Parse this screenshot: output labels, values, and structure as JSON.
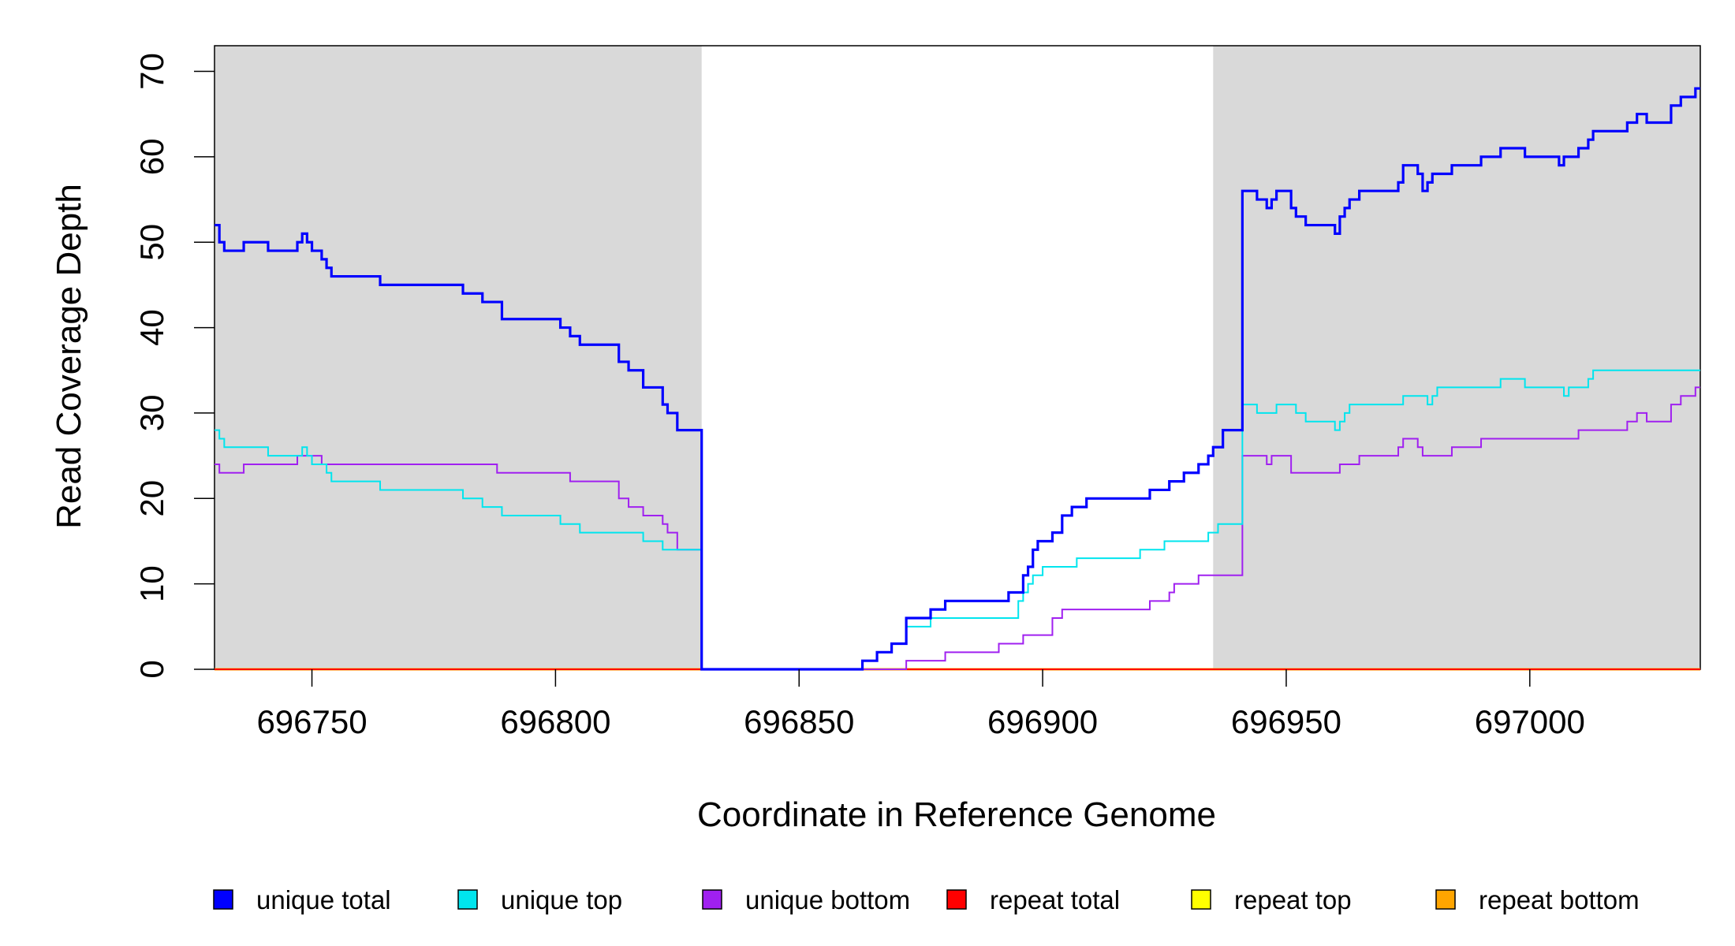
{
  "chart_data": {
    "type": "line",
    "xlabel": "Coordinate in Reference Genome",
    "ylabel": "Read Coverage Depth",
    "xlim": [
      696730,
      697035
    ],
    "ylim": [
      0,
      73
    ],
    "x_ticks": [
      696750,
      696800,
      696850,
      696900,
      696950,
      697000
    ],
    "y_ticks": [
      0,
      10,
      20,
      30,
      40,
      50,
      60,
      70
    ],
    "shaded_regions": [
      {
        "from": 696730,
        "to": 696830,
        "color": "#d9d9d9"
      },
      {
        "from": 696935,
        "to": 697035,
        "color": "#d9d9d9"
      }
    ],
    "legend_position": "bottom",
    "series": [
      {
        "name": "unique total",
        "color": "#0000ff",
        "points": [
          [
            696730,
            52
          ],
          [
            696731,
            50
          ],
          [
            696732,
            49
          ],
          [
            696736,
            50
          ],
          [
            696741,
            49
          ],
          [
            696747,
            50
          ],
          [
            696748,
            51
          ],
          [
            696749,
            50
          ],
          [
            696750,
            49
          ],
          [
            696752,
            48
          ],
          [
            696753,
            47
          ],
          [
            696754,
            46
          ],
          [
            696764,
            45
          ],
          [
            696781,
            44
          ],
          [
            696785,
            43
          ],
          [
            696789,
            41
          ],
          [
            696801,
            40
          ],
          [
            696803,
            39
          ],
          [
            696805,
            38
          ],
          [
            696813,
            36
          ],
          [
            696815,
            35
          ],
          [
            696818,
            33
          ],
          [
            696822,
            31
          ],
          [
            696823,
            30
          ],
          [
            696825,
            28
          ],
          [
            696830,
            28
          ],
          [
            696830,
            0
          ],
          [
            696863,
            0
          ],
          [
            696863,
            1
          ],
          [
            696866,
            2
          ],
          [
            696869,
            3
          ],
          [
            696872,
            6
          ],
          [
            696877,
            7
          ],
          [
            696880,
            8
          ],
          [
            696891,
            8
          ],
          [
            696893,
            9
          ],
          [
            696896,
            11
          ],
          [
            696897,
            12
          ],
          [
            696898,
            14
          ],
          [
            696899,
            15
          ],
          [
            696902,
            16
          ],
          [
            696904,
            18
          ],
          [
            696906,
            19
          ],
          [
            696909,
            20
          ],
          [
            696922,
            21
          ],
          [
            696926,
            22
          ],
          [
            696929,
            23
          ],
          [
            696932,
            24
          ],
          [
            696934,
            25
          ],
          [
            696935,
            26
          ],
          [
            696937,
            28
          ],
          [
            696940,
            28
          ],
          [
            696941,
            56
          ],
          [
            696944,
            55
          ],
          [
            696946,
            54
          ],
          [
            696947,
            55
          ],
          [
            696948,
            56
          ],
          [
            696951,
            54
          ],
          [
            696952,
            53
          ],
          [
            696954,
            52
          ],
          [
            696960,
            51
          ],
          [
            696961,
            53
          ],
          [
            696962,
            54
          ],
          [
            696963,
            55
          ],
          [
            696965,
            56
          ],
          [
            696973,
            57
          ],
          [
            696974,
            59
          ],
          [
            696977,
            58
          ],
          [
            696978,
            56
          ],
          [
            696979,
            57
          ],
          [
            696980,
            58
          ],
          [
            696984,
            59
          ],
          [
            696990,
            60
          ],
          [
            696994,
            61
          ],
          [
            696999,
            60
          ],
          [
            697006,
            59
          ],
          [
            697007,
            60
          ],
          [
            697010,
            61
          ],
          [
            697012,
            62
          ],
          [
            697013,
            63
          ],
          [
            697020,
            64
          ],
          [
            697022,
            65
          ],
          [
            697024,
            64
          ],
          [
            697029,
            66
          ],
          [
            697031,
            67
          ],
          [
            697034,
            68
          ],
          [
            697035,
            68
          ]
        ]
      },
      {
        "name": "unique top",
        "color": "#00e5ee",
        "points": [
          [
            696730,
            28
          ],
          [
            696731,
            27
          ],
          [
            696732,
            26
          ],
          [
            696741,
            25
          ],
          [
            696748,
            26
          ],
          [
            696749,
            25
          ],
          [
            696750,
            24
          ],
          [
            696753,
            23
          ],
          [
            696754,
            22
          ],
          [
            696764,
            21
          ],
          [
            696781,
            20
          ],
          [
            696785,
            19
          ],
          [
            696789,
            18
          ],
          [
            696801,
            17
          ],
          [
            696805,
            16
          ],
          [
            696818,
            15
          ],
          [
            696822,
            14
          ],
          [
            696825,
            14
          ],
          [
            696830,
            14
          ],
          [
            696830,
            0
          ],
          [
            696863,
            0
          ],
          [
            696863,
            1
          ],
          [
            696866,
            2
          ],
          [
            696869,
            3
          ],
          [
            696872,
            5
          ],
          [
            696877,
            6
          ],
          [
            696895,
            8
          ],
          [
            696896,
            9
          ],
          [
            696897,
            10
          ],
          [
            696898,
            11
          ],
          [
            696900,
            12
          ],
          [
            696907,
            13
          ],
          [
            696920,
            14
          ],
          [
            696925,
            15
          ],
          [
            696934,
            16
          ],
          [
            696936,
            17
          ],
          [
            696940,
            17
          ],
          [
            696941,
            31
          ],
          [
            696944,
            30
          ],
          [
            696948,
            31
          ],
          [
            696952,
            30
          ],
          [
            696954,
            29
          ],
          [
            696960,
            28
          ],
          [
            696961,
            29
          ],
          [
            696962,
            30
          ],
          [
            696963,
            31
          ],
          [
            696974,
            32
          ],
          [
            696979,
            31
          ],
          [
            696980,
            32
          ],
          [
            696981,
            33
          ],
          [
            696994,
            34
          ],
          [
            696999,
            33
          ],
          [
            697007,
            32
          ],
          [
            697008,
            33
          ],
          [
            697012,
            34
          ],
          [
            697013,
            35
          ],
          [
            697035,
            35
          ]
        ]
      },
      {
        "name": "unique bottom",
        "color": "#a020f0",
        "points": [
          [
            696730,
            24
          ],
          [
            696731,
            23
          ],
          [
            696736,
            24
          ],
          [
            696747,
            25
          ],
          [
            696752,
            24
          ],
          [
            696788,
            23
          ],
          [
            696803,
            22
          ],
          [
            696813,
            20
          ],
          [
            696815,
            19
          ],
          [
            696818,
            18
          ],
          [
            696822,
            17
          ],
          [
            696823,
            16
          ],
          [
            696825,
            14
          ],
          [
            696830,
            14
          ],
          [
            696830,
            0
          ],
          [
            696872,
            0
          ],
          [
            696872,
            1
          ],
          [
            696880,
            2
          ],
          [
            696891,
            3
          ],
          [
            696896,
            4
          ],
          [
            696902,
            6
          ],
          [
            696904,
            7
          ],
          [
            696922,
            8
          ],
          [
            696926,
            9
          ],
          [
            696927,
            10
          ],
          [
            696932,
            11
          ],
          [
            696940,
            11
          ],
          [
            696941,
            25
          ],
          [
            696946,
            24
          ],
          [
            696947,
            25
          ],
          [
            696951,
            23
          ],
          [
            696961,
            24
          ],
          [
            696965,
            25
          ],
          [
            696973,
            26
          ],
          [
            696974,
            27
          ],
          [
            696977,
            26
          ],
          [
            696978,
            25
          ],
          [
            696984,
            26
          ],
          [
            696990,
            27
          ],
          [
            697010,
            28
          ],
          [
            697020,
            29
          ],
          [
            697022,
            30
          ],
          [
            697024,
            29
          ],
          [
            697029,
            31
          ],
          [
            697031,
            32
          ],
          [
            697034,
            33
          ],
          [
            697035,
            33
          ]
        ]
      },
      {
        "name": "repeat total",
        "color": "#ff0000",
        "points": [
          [
            696730,
            0
          ],
          [
            697035,
            0
          ]
        ]
      },
      {
        "name": "repeat top",
        "color": "#ffff00",
        "points": [
          [
            696730,
            0
          ],
          [
            697035,
            0
          ]
        ]
      },
      {
        "name": "repeat bottom",
        "color": "#ffa500",
        "points": [
          [
            696730,
            0
          ],
          [
            697035,
            0
          ]
        ]
      }
    ]
  }
}
